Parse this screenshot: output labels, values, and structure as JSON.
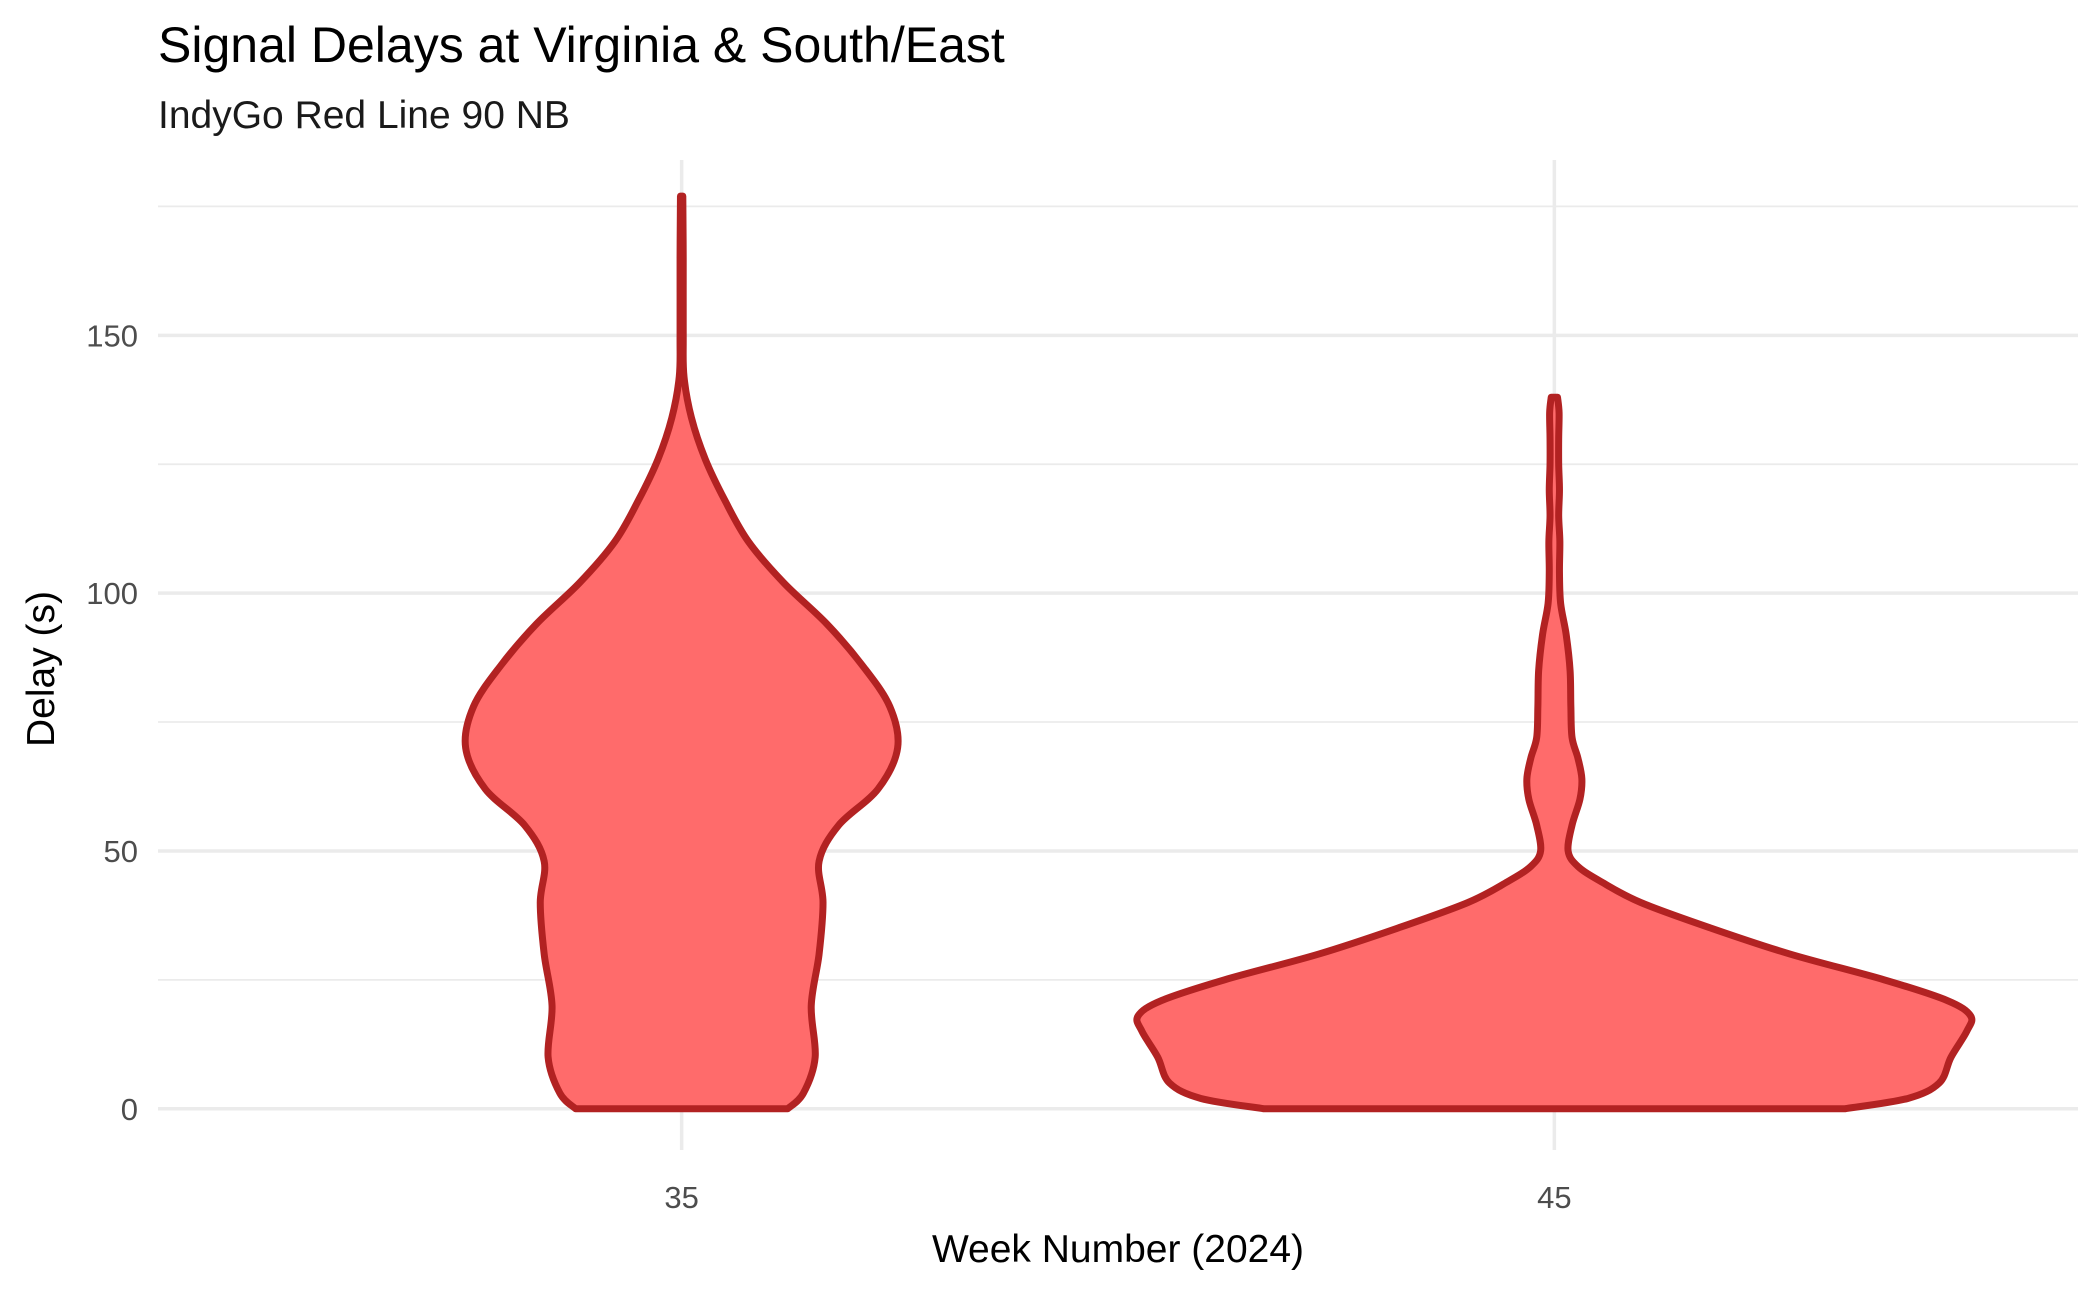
{
  "chart_data": {
    "type": "violin",
    "title": "Signal Delays at Virginia & South/East",
    "subtitle": "IndyGo Red Line 90 NB",
    "xlabel": "Week Number (2024)",
    "ylabel": "Delay (s)",
    "categories": [
      "35",
      "45"
    ],
    "y_ticks": [
      0,
      50,
      100,
      150
    ],
    "ylim": [
      -8,
      184
    ],
    "grid": true,
    "legend": "none",
    "fill_color": "#ff6b6b",
    "line_color": "#b22222",
    "violins": [
      {
        "category": "35",
        "density_profile": [
          {
            "y": 0,
            "w": 0.27
          },
          {
            "y": 3,
            "w": 0.31
          },
          {
            "y": 10,
            "w": 0.34
          },
          {
            "y": 20,
            "w": 0.33
          },
          {
            "y": 30,
            "w": 0.35
          },
          {
            "y": 40,
            "w": 0.36
          },
          {
            "y": 48,
            "w": 0.35
          },
          {
            "y": 55,
            "w": 0.4
          },
          {
            "y": 62,
            "w": 0.5
          },
          {
            "y": 70,
            "w": 0.55
          },
          {
            "y": 78,
            "w": 0.53
          },
          {
            "y": 86,
            "w": 0.46
          },
          {
            "y": 94,
            "w": 0.37
          },
          {
            "y": 102,
            "w": 0.26
          },
          {
            "y": 110,
            "w": 0.17
          },
          {
            "y": 118,
            "w": 0.11
          },
          {
            "y": 126,
            "w": 0.06
          },
          {
            "y": 134,
            "w": 0.025
          },
          {
            "y": 142,
            "w": 0.006
          },
          {
            "y": 150,
            "w": 0.004
          },
          {
            "y": 165,
            "w": 0.004
          },
          {
            "y": 177,
            "w": 0.003
          }
        ]
      },
      {
        "category": "45",
        "density_profile": [
          {
            "y": 0,
            "w": 0.74
          },
          {
            "y": 2,
            "w": 0.9
          },
          {
            "y": 5,
            "w": 0.98
          },
          {
            "y": 10,
            "w": 1.01
          },
          {
            "y": 15,
            "w": 1.05
          },
          {
            "y": 18,
            "w": 1.06
          },
          {
            "y": 21,
            "w": 1.0
          },
          {
            "y": 25,
            "w": 0.84
          },
          {
            "y": 30,
            "w": 0.6
          },
          {
            "y": 35,
            "w": 0.4
          },
          {
            "y": 40,
            "w": 0.22
          },
          {
            "y": 44,
            "w": 0.12
          },
          {
            "y": 47,
            "w": 0.06
          },
          {
            "y": 50,
            "w": 0.035
          },
          {
            "y": 55,
            "w": 0.045
          },
          {
            "y": 60,
            "w": 0.065
          },
          {
            "y": 64,
            "w": 0.07
          },
          {
            "y": 68,
            "w": 0.06
          },
          {
            "y": 72,
            "w": 0.045
          },
          {
            "y": 78,
            "w": 0.042
          },
          {
            "y": 85,
            "w": 0.04
          },
          {
            "y": 92,
            "w": 0.03
          },
          {
            "y": 98,
            "w": 0.016
          },
          {
            "y": 104,
            "w": 0.013
          },
          {
            "y": 110,
            "w": 0.014
          },
          {
            "y": 115,
            "w": 0.011
          },
          {
            "y": 120,
            "w": 0.013
          },
          {
            "y": 125,
            "w": 0.011
          },
          {
            "y": 130,
            "w": 0.011
          },
          {
            "y": 135,
            "w": 0.012
          },
          {
            "y": 138,
            "w": 0.008
          }
        ]
      }
    ]
  }
}
